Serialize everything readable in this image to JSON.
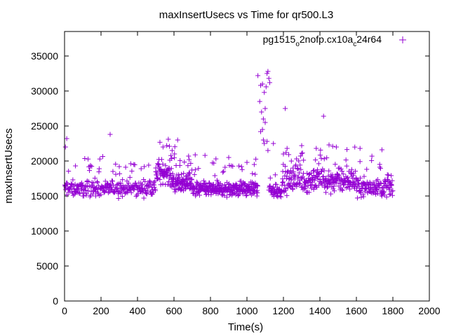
{
  "chart_data": {
    "type": "scatter",
    "title": "maxInsertUsecs vs Time for qr500.L3",
    "xlabel": "Time(s)",
    "ylabel": "maxInsertUsecs",
    "xlim": [
      0,
      2000
    ],
    "ylim": [
      0,
      38500
    ],
    "x_ticks": [
      0,
      200,
      400,
      600,
      800,
      1000,
      1200,
      1400,
      1600,
      1800,
      2000
    ],
    "y_ticks": [
      0,
      5000,
      10000,
      15000,
      20000,
      25000,
      30000,
      35000
    ],
    "legend_position": "top-right",
    "series": [
      {
        "name": "pg1515_o2nofp.cx10a_c24r64",
        "name_parts": {
          "a": "pg1515",
          "sub1": "o",
          "b": "2nofp.cx10a",
          "sub2": "c",
          "c": "24r64"
        },
        "color": "#9400d3",
        "marker": "plus",
        "points": [
          [
            5,
            22000
          ],
          [
            12,
            23200
          ],
          [
            250,
            23800
          ],
          [
            620,
            23000
          ],
          [
            1060,
            32200
          ],
          [
            1075,
            30800
          ],
          [
            1085,
            31000
          ],
          [
            1095,
            29800
          ],
          [
            1100,
            27500
          ],
          [
            1105,
            30600
          ],
          [
            1110,
            32500
          ],
          [
            1115,
            32800
          ],
          [
            1120,
            31800
          ],
          [
            1125,
            31200
          ],
          [
            1070,
            28500
          ],
          [
            1080,
            27000
          ],
          [
            1090,
            26000
          ],
          [
            1100,
            25500
          ],
          [
            1085,
            24500
          ],
          [
            1075,
            24200
          ],
          [
            1090,
            23000
          ],
          [
            1095,
            22500
          ],
          [
            1110,
            22800
          ],
          [
            1115,
            21500
          ],
          [
            1210,
            27500
          ],
          [
            1420,
            26400
          ],
          [
            1145,
            22500
          ],
          [
            1200,
            21000
          ],
          [
            1220,
            21800
          ],
          [
            1300,
            22200
          ],
          [
            1380,
            21800
          ],
          [
            1450,
            22300
          ],
          [
            1470,
            22100
          ],
          [
            1490,
            22000
          ],
          [
            1620,
            21800
          ],
          [
            1740,
            21600
          ],
          [
            540,
            22000
          ],
          [
            560,
            22200
          ],
          [
            575,
            22100
          ],
          [
            590,
            21500
          ],
          [
            680,
            20700
          ],
          [
            770,
            20800
          ],
          [
            830,
            20300
          ],
          [
            900,
            20500
          ],
          [
            60,
            19300
          ],
          [
            140,
            19200
          ],
          [
            190,
            18900
          ],
          [
            300,
            19200
          ],
          [
            380,
            19500
          ],
          [
            420,
            18900
          ],
          [
            500,
            19000
          ],
          [
            1040,
            19500
          ],
          [
            970,
            19200
          ],
          [
            1000,
            19800
          ],
          [
            880,
            19100
          ]
        ],
        "segments": [
          {
            "x0": 0,
            "x1": 500,
            "n": 260,
            "base": 16100,
            "spread": 900,
            "outliers": 0.08
          },
          {
            "x0": 500,
            "x1": 580,
            "n": 60,
            "base": 18300,
            "spread": 1300,
            "outliers": 0.1
          },
          {
            "x0": 580,
            "x1": 700,
            "n": 110,
            "base": 17000,
            "spread": 1100,
            "outliers": 0.08
          },
          {
            "x0": 700,
            "x1": 1060,
            "n": 280,
            "base": 16000,
            "spread": 900,
            "outliers": 0.06
          },
          {
            "x0": 1120,
            "x1": 1190,
            "n": 45,
            "base": 15800,
            "spread": 1000,
            "outliers": 0.05
          },
          {
            "x0": 1190,
            "x1": 1600,
            "n": 270,
            "base": 17200,
            "spread": 1400,
            "outliers": 0.08
          },
          {
            "x0": 1600,
            "x1": 1800,
            "n": 130,
            "base": 16300,
            "spread": 1100,
            "outliers": 0.06
          }
        ]
      }
    ]
  }
}
